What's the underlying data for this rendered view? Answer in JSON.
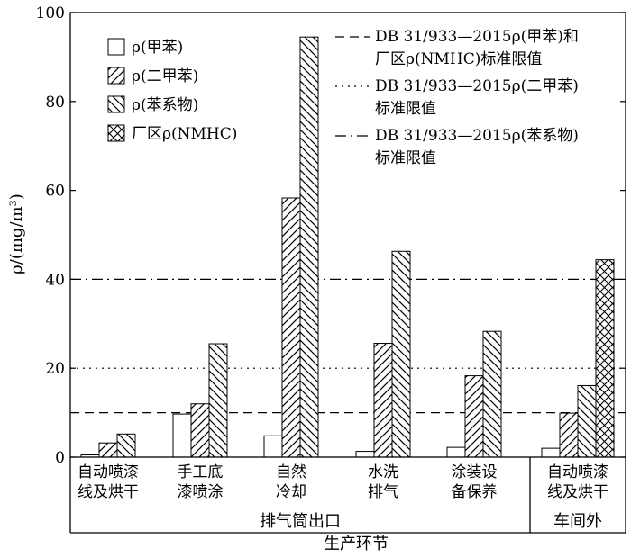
{
  "chart_data": {
    "type": "bar",
    "ylabel": "ρ/(mg/m³)",
    "ylim": [
      0,
      100
    ],
    "yticks": [
      "0",
      "20",
      "40",
      "60",
      "80",
      "100"
    ],
    "xlabel": "生产环节",
    "categories": [
      {
        "lines": [
          "自动喷漆",
          "线及烘干"
        ]
      },
      {
        "lines": [
          "手工底",
          "漆喷涂"
        ]
      },
      {
        "lines": [
          "自然",
          "冷却"
        ]
      },
      {
        "lines": [
          "水洗",
          "排气"
        ]
      },
      {
        "lines": [
          "涂装设",
          "备保养"
        ]
      },
      {
        "lines": [
          "自动喷漆",
          "线及烘干"
        ]
      }
    ],
    "groups": [
      {
        "label": "排气筒出口",
        "categories": [
          0,
          1,
          2,
          3,
          4
        ]
      },
      {
        "label": "车间外",
        "categories": [
          5
        ]
      }
    ],
    "series": [
      {
        "name": "ρ(甲苯)",
        "pattern": "blank",
        "values": [
          0.5,
          9.7,
          4.8,
          1.3,
          2.2,
          2.0
        ]
      },
      {
        "name": "ρ(二甲苯)",
        "pattern": "diag-right",
        "values": [
          3.2,
          12.0,
          58.3,
          25.6,
          18.3,
          9.9
        ]
      },
      {
        "name": "ρ(苯系物)",
        "pattern": "diag-left",
        "values": [
          5.2,
          25.5,
          94.5,
          46.3,
          28.3,
          16.1
        ]
      },
      {
        "name": "厂区ρ(NMHC)",
        "pattern": "cross",
        "values": [
          null,
          null,
          null,
          null,
          null,
          44.4
        ]
      }
    ],
    "reference_lines": [
      {
        "value": 10,
        "style": "dashed",
        "label_lines": [
          "DB 31/933—2015ρ(甲苯)和",
          "厂区ρ(NMHC)标准限值"
        ]
      },
      {
        "value": 20,
        "style": "dotted",
        "label_lines": [
          "DB 31/933—2015ρ(二甲苯)",
          "标准限值"
        ]
      },
      {
        "value": 40,
        "style": "dashdot",
        "label_lines": [
          "DB 31/933—2015ρ(苯系物)",
          "标准限值"
        ]
      }
    ],
    "legend_position": "top-left"
  }
}
